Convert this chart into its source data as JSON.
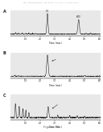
{
  "header_text": "Patent Application Publication    Nov. 28, 2018   Sheet 1 of 14    U.S. 2018/0334864 A1",
  "footer_text": "Figure 71",
  "panel_labels": [
    "A",
    "B",
    "C"
  ],
  "xlabel": "Time (min.)",
  "background_color": "#f0f0f0",
  "panel_bg": "#e8e8e8",
  "line_color": "#111111",
  "xlim": [
    0.0,
    6.0
  ],
  "xticks": [
    1.0,
    2.0,
    3.0,
    4.0,
    5.0,
    6.0
  ],
  "xtick_labels": [
    "1.0",
    "2.0",
    "3.0",
    "4.0",
    "5.0",
    "6.0"
  ]
}
